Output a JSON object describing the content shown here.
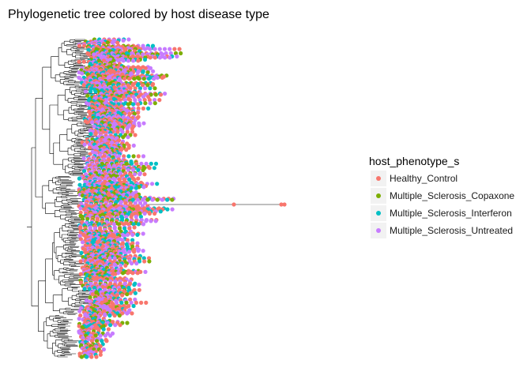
{
  "chart_data": {
    "type": "scatter",
    "title": "Phylogenetic tree colored by host disease type",
    "xlabel": "",
    "ylabel": "",
    "grid": false,
    "legend_position": "right",
    "legend": {
      "title": "host_phenotype_s",
      "entries": [
        {
          "label": "Healthy_Control",
          "color": "#F8766D"
        },
        {
          "label": "Multiple_Sclerosis_Copaxone",
          "color": "#7CAE00"
        },
        {
          "label": "Multiple_Sclerosis_Interferon",
          "color": "#00BFC4"
        },
        {
          "label": "Multiple_Sclerosis_Untreated",
          "color": "#C77CFF"
        }
      ]
    },
    "tip_profile": [
      [
        0,
        14
      ],
      [
        0.04,
        18
      ],
      [
        0.08,
        12
      ],
      [
        0.12,
        16
      ],
      [
        0.16,
        12
      ],
      [
        0.2,
        14
      ],
      [
        0.24,
        10
      ],
      [
        0.28,
        9
      ],
      [
        0.32,
        7
      ],
      [
        0.36,
        8
      ],
      [
        0.4,
        15
      ],
      [
        0.44,
        13
      ],
      [
        0.48,
        16
      ],
      [
        0.52,
        18
      ],
      [
        0.56,
        12
      ],
      [
        0.6,
        11
      ],
      [
        0.64,
        10
      ],
      [
        0.68,
        12
      ],
      [
        0.72,
        14
      ],
      [
        0.76,
        11
      ],
      [
        0.8,
        9
      ],
      [
        0.84,
        12
      ],
      [
        0.88,
        8
      ],
      [
        0.92,
        7
      ],
      [
        0.96,
        5
      ],
      [
        1.0,
        3
      ]
    ]
  }
}
